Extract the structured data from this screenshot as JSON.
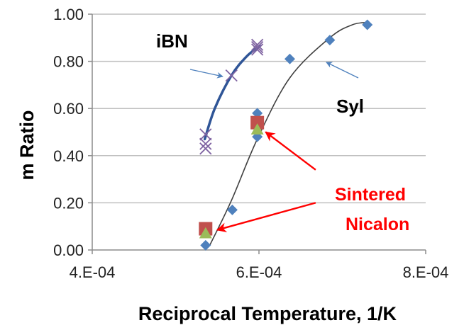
{
  "chart_data": {
    "type": "scatter",
    "title": "",
    "xlabel": "Reciprocal Temperature, 1/K",
    "ylabel": "m Ratio",
    "xlim": [
      0.0004,
      0.0008
    ],
    "ylim": [
      0,
      1
    ],
    "x_ticks": [
      0.0004,
      0.0006,
      0.0008
    ],
    "x_tick_labels": [
      "4.E-04",
      "6.E-04",
      "8.E-04"
    ],
    "y_ticks": [
      0,
      0.2,
      0.4,
      0.6,
      0.8,
      1.0
    ],
    "y_tick_labels": [
      "0.00",
      "0.20",
      "0.40",
      "0.60",
      "0.80",
      "1.00"
    ],
    "grid": "horizontal",
    "legend": "none",
    "series": [
      {
        "name": "iBN",
        "marker": "x",
        "color": "#8064A2",
        "points": [
          [
            0.000536,
            0.49
          ],
          [
            0.000536,
            0.45
          ],
          [
            0.000536,
            0.43
          ],
          [
            0.000567,
            0.74
          ],
          [
            0.000598,
            0.87
          ],
          [
            0.000598,
            0.86
          ],
          [
            0.000598,
            0.85
          ]
        ],
        "trend": {
          "color": "#2F5597",
          "points": [
            [
              0.000535,
              0.47
            ],
            [
              0.000547,
              0.6
            ],
            [
              0.000567,
              0.74
            ],
            [
              0.000585,
              0.82
            ],
            [
              0.000601,
              0.865
            ]
          ]
        }
      },
      {
        "name": "Syl",
        "marker": "diamond",
        "color": "#4F81BD",
        "points": [
          [
            0.000536,
            0.02
          ],
          [
            0.000568,
            0.17
          ],
          [
            0.000598,
            0.48
          ],
          [
            0.000598,
            0.58
          ],
          [
            0.000637,
            0.81
          ],
          [
            0.000685,
            0.89
          ],
          [
            0.00073,
            0.955
          ]
        ],
        "trend": {
          "color": "#404040",
          "points": [
            [
              0.000541,
              0.02
            ],
            [
              0.000567,
              0.21
            ],
            [
              0.000598,
              0.47
            ],
            [
              0.000637,
              0.73
            ],
            [
              0.000685,
              0.9
            ],
            [
              0.000712,
              0.955
            ],
            [
              0.00073,
              0.965
            ]
          ]
        }
      },
      {
        "name": "Sintered Nicalon",
        "marker": "square",
        "color": "#C0504D",
        "points": [
          [
            0.000536,
            0.09
          ],
          [
            0.000598,
            0.54
          ]
        ]
      },
      {
        "name": "Sintered Nicalon",
        "marker": "triangle",
        "color": "#9BBB59",
        "points": [
          [
            0.000536,
            0.07
          ],
          [
            0.000598,
            0.51
          ]
        ]
      }
    ],
    "annotations": [
      {
        "text": "iBN",
        "arrow_from": [
          0.000557,
          0.76
        ],
        "arrow_to": [
          0.000554,
          0.76
        ]
      },
      {
        "text": "Syl",
        "arrow_from": [
          0.000665,
          0.755
        ],
        "arrow_to": [
          0.000647,
          0.785
        ]
      },
      {
        "text_lines": [
          "Sintered",
          "Nicalon"
        ],
        "color": "#FF0000",
        "arrows": [
          {
            "from": [
              0.000668,
              0.34
            ],
            "to": [
              0.000608,
              0.5
            ]
          },
          {
            "from": [
              0.000668,
              0.2
            ],
            "to": [
              0.00055,
              0.085
            ]
          }
        ]
      }
    ]
  }
}
